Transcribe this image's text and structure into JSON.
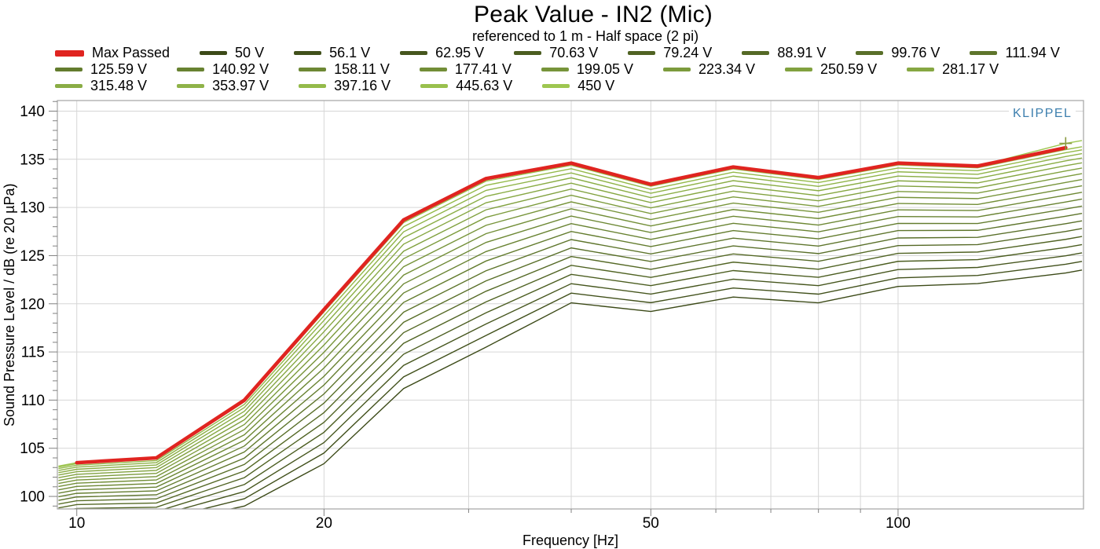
{
  "header": {
    "title": "Peak Value - IN2 (Mic)",
    "subtitle": "referenced to 1 m - Half space (2 pi)"
  },
  "watermark": {
    "text": "KLIPPEL",
    "color": "#3D7FAE"
  },
  "axes": {
    "x_label": "Frequency [Hz]",
    "y_label": "Sound Pressure Level / dB (re 20 µPa)"
  },
  "legend": {
    "rows": [
      [
        {
          "label": "Max Passed",
          "color": "#E02420",
          "thick": true
        },
        {
          "label": "50 V",
          "color": "#3C4A18"
        },
        {
          "label": "56.1 V",
          "color": "#41501B"
        },
        {
          "label": "62.95 V",
          "color": "#46561E"
        },
        {
          "label": "70.63 V",
          "color": "#4B5D20"
        },
        {
          "label": "79.24 V",
          "color": "#506323"
        },
        {
          "label": "88.91 V",
          "color": "#556926"
        },
        {
          "label": "99.76 V",
          "color": "#596F29"
        },
        {
          "label": "111.94 V",
          "color": "#5E752C"
        }
      ],
      [
        {
          "label": "125.59 V",
          "color": "#637C2E"
        },
        {
          "label": "140.92 V",
          "color": "#688231"
        },
        {
          "label": "158.11 V",
          "color": "#6D8834"
        },
        {
          "label": "177.41 V",
          "color": "#728E37"
        },
        {
          "label": "199.05 V",
          "color": "#77943A"
        },
        {
          "label": "223.34 V",
          "color": "#7C9B3C"
        },
        {
          "label": "250.59 V",
          "color": "#81A13F"
        },
        {
          "label": "281.17 V",
          "color": "#86A742"
        }
      ],
      [
        {
          "label": "315.48 V",
          "color": "#8AAD45"
        },
        {
          "label": "353.97 V",
          "color": "#8FB348"
        },
        {
          "label": "397.16 V",
          "color": "#94BA4A"
        },
        {
          "label": "445.63 V",
          "color": "#99C04D"
        },
        {
          "label": "450 V",
          "color": "#9EC650"
        }
      ]
    ]
  },
  "chart_data": {
    "type": "line",
    "title": "Peak Value - IN2 (Mic)",
    "xlabel": "Frequency [Hz]",
    "ylabel": "Sound Pressure Level / dB (re 20 µPa)",
    "x_scale": "log",
    "grid": true,
    "x_range": [
      9.47,
      168.2
    ],
    "y_range": [
      98.7,
      141.1
    ],
    "x_gridlines": [
      10,
      20,
      30,
      40,
      50,
      60,
      70,
      80,
      90,
      100
    ],
    "x_tick_values": [
      10,
      20,
      50,
      100
    ],
    "x_tick_labels": [
      "10",
      "20",
      "50",
      "100"
    ],
    "y_ticks": [
      100,
      105,
      110,
      115,
      120,
      125,
      130,
      135,
      140
    ],
    "frequencies": [
      10,
      12.5,
      16,
      20,
      25,
      31.5,
      40,
      50,
      63,
      80,
      100,
      125,
      160
    ],
    "max_passed": [
      103.5,
      104.0,
      110.0,
      119.4,
      128.7,
      133.0,
      134.6,
      132.4,
      134.2,
      133.1,
      134.6,
      134.3,
      136.2
    ],
    "spread_db": [
      6.5,
      7.0,
      11.0,
      16.0,
      17.5,
      17.5,
      14.5,
      13.2,
      13.5,
      13.0,
      12.8,
      12.2,
      13.0
    ],
    "bunching_exponent": 1.4,
    "series_rule": "SPL_i(f) = max_passed(f) - spread_db(f) * ((1 - i/20)^1.4), voltage index i: 0 = 50 V ... 20 = 450 V",
    "voltages": [
      50,
      56.1,
      62.95,
      70.63,
      79.24,
      88.91,
      99.76,
      111.94,
      125.59,
      140.92,
      158.11,
      177.41,
      199.05,
      223.34,
      250.59,
      281.17,
      315.48,
      353.97,
      397.16,
      445.63,
      450
    ],
    "v50_values": [
      97.0,
      97.0,
      99.0,
      103.4,
      111.2,
      115.5,
      120.1,
      119.2,
      120.7,
      120.1,
      121.8,
      122.1,
      123.2
    ],
    "top_end_spl": 136.65,
    "end_cross": {
      "freq": 160,
      "spl": 136.65
    },
    "pre_extension_freq": 9.5,
    "extension_freq": 167.5,
    "colors": {
      "max_passed": "#E02420",
      "series_low": "#3C4A18",
      "series_high": "#9EC650",
      "grid": "#D6D6D6",
      "frame": "#ABABAB",
      "tick": "#808080",
      "cross": "#8A9A40"
    }
  }
}
